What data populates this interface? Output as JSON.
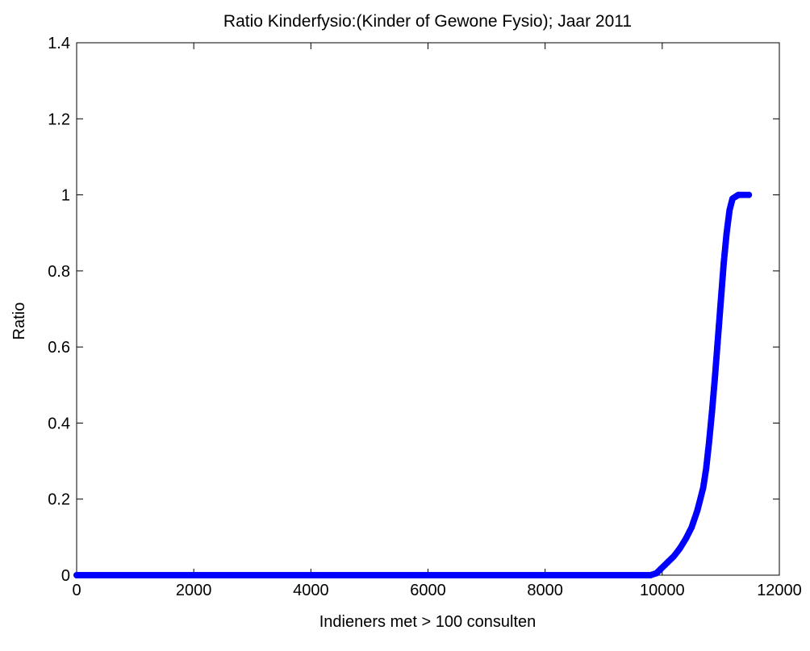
{
  "chart_data": {
    "type": "scatter",
    "title": "Ratio Kinderfysio:(Kinder of Gewone Fysio); Jaar 2011",
    "xlabel": "Indieners met > 100 consulten",
    "ylabel": "Ratio",
    "xlim": [
      0,
      12000
    ],
    "ylim": [
      0,
      1.4
    ],
    "xticks": [
      0,
      2000,
      4000,
      6000,
      8000,
      10000,
      12000
    ],
    "xtick_labels": [
      "0",
      "2000",
      "4000",
      "6000",
      "8000",
      "10000",
      "12000"
    ],
    "yticks": [
      0,
      0.2,
      0.4,
      0.6,
      0.8,
      1,
      1.2,
      1.4
    ],
    "ytick_labels": [
      "0",
      "0.2",
      "0.4",
      "0.6",
      "0.8",
      "1",
      "1.2",
      "1.4"
    ],
    "grid": false,
    "marker_color": "#0000ff",
    "series": [
      {
        "x": [
          0,
          500,
          1000,
          1500,
          2000,
          2500,
          3000,
          3500,
          4000,
          4500,
          5000,
          5500,
          6000,
          6500,
          7000,
          7500,
          8000,
          8500,
          9000,
          9500,
          9800,
          9900,
          10000,
          10100,
          10200,
          10300,
          10400,
          10500,
          10600,
          10700,
          10750,
          10800,
          10850,
          10900,
          10950,
          11000,
          11050,
          11100,
          11150,
          11200,
          11300,
          11400,
          11480
        ],
        "y": [
          0,
          0,
          0,
          0,
          0,
          0,
          0,
          0,
          0,
          0,
          0,
          0,
          0,
          0,
          0,
          0,
          0,
          0,
          0,
          0,
          0,
          0.005,
          0.02,
          0.035,
          0.05,
          0.07,
          0.095,
          0.125,
          0.17,
          0.23,
          0.28,
          0.35,
          0.43,
          0.52,
          0.62,
          0.72,
          0.82,
          0.9,
          0.96,
          0.99,
          1,
          1,
          1
        ]
      }
    ]
  }
}
